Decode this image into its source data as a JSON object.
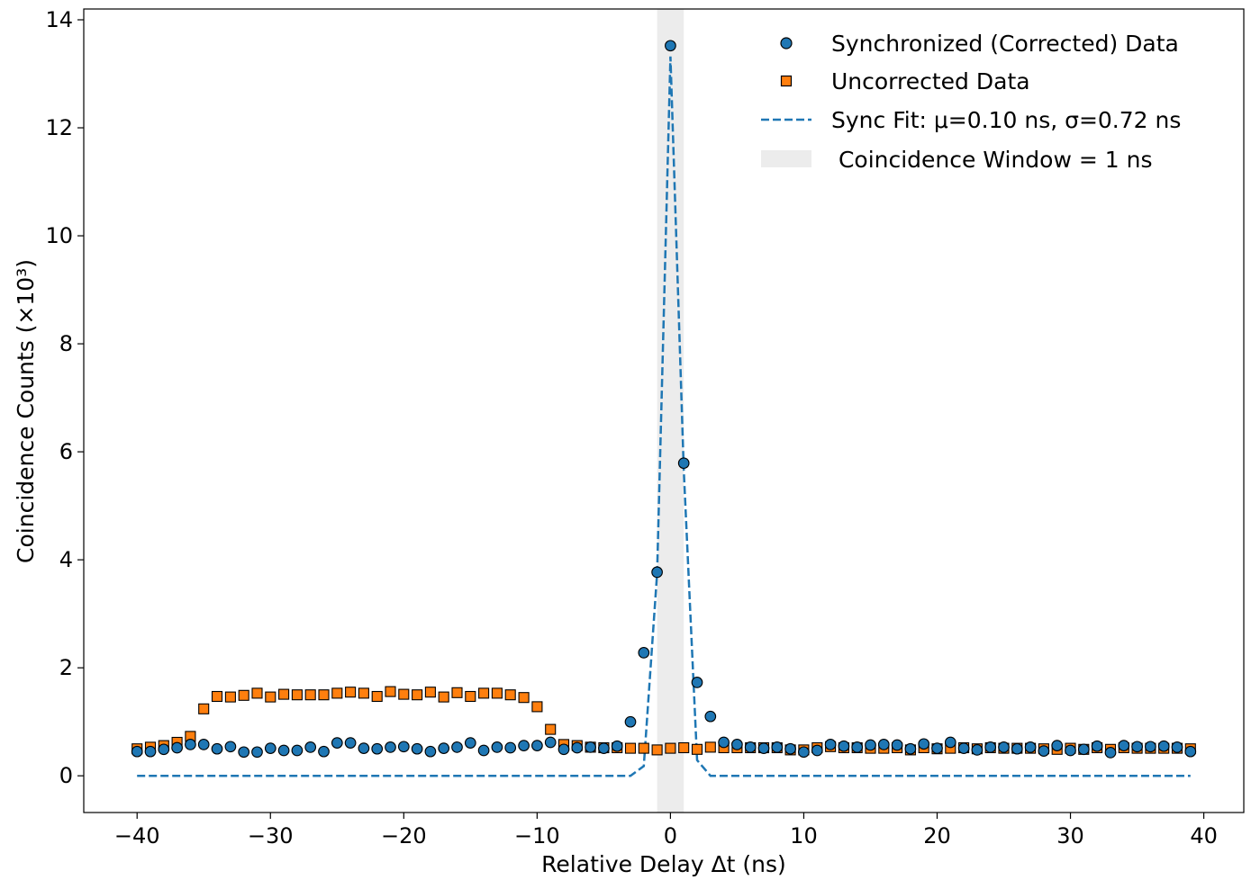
{
  "chart_data": {
    "type": "scatter",
    "xlabel": "Relative Delay  Δt (ns)",
    "ylabel": "Coincidence Counts (×10³)",
    "xlim": [
      -44,
      43
    ],
    "ylim": [
      -0.68,
      14.2
    ],
    "xticks": [
      -40,
      -30,
      -20,
      -10,
      0,
      10,
      20,
      30,
      40
    ],
    "yticks": [
      0,
      2,
      4,
      6,
      8,
      10,
      12,
      14
    ],
    "grid": false,
    "legend_position": "top-right",
    "shaded_region": {
      "name": " Coincidence Window = 1 ns",
      "x": [
        -1,
        1
      ],
      "color": "#d9d9d9"
    },
    "x": [
      -40,
      -39,
      -38,
      -37,
      -36,
      -35,
      -34,
      -33,
      -32,
      -31,
      -30,
      -29,
      -28,
      -27,
      -26,
      -25,
      -24,
      -23,
      -22,
      -21,
      -20,
      -19,
      -18,
      -17,
      -16,
      -15,
      -14,
      -13,
      -12,
      -11,
      -10,
      -9,
      -8,
      -7,
      -6,
      -5,
      -4,
      -3,
      -2,
      -1,
      0,
      1,
      2,
      3,
      4,
      5,
      6,
      7,
      8,
      9,
      10,
      11,
      12,
      13,
      14,
      15,
      16,
      17,
      18,
      19,
      20,
      21,
      22,
      23,
      24,
      25,
      26,
      27,
      28,
      29,
      30,
      31,
      32,
      33,
      34,
      35,
      36,
      37,
      38,
      39
    ],
    "series": [
      {
        "name": "Synchronized (Corrected) Data",
        "marker": "circle",
        "color": "#1f77b4",
        "values": [
          0.45,
          0.45,
          0.49,
          0.52,
          0.58,
          0.58,
          0.5,
          0.54,
          0.44,
          0.44,
          0.51,
          0.47,
          0.47,
          0.53,
          0.45,
          0.61,
          0.61,
          0.51,
          0.5,
          0.53,
          0.54,
          0.5,
          0.45,
          0.51,
          0.53,
          0.61,
          0.47,
          0.53,
          0.52,
          0.56,
          0.56,
          0.62,
          0.49,
          0.52,
          0.53,
          0.51,
          0.55,
          1.0,
          2.28,
          3.77,
          13.52,
          5.79,
          1.73,
          1.1,
          0.62,
          0.58,
          0.53,
          0.51,
          0.53,
          0.5,
          0.44,
          0.47,
          0.58,
          0.55,
          0.53,
          0.57,
          0.58,
          0.57,
          0.5,
          0.59,
          0.51,
          0.62,
          0.51,
          0.48,
          0.53,
          0.53,
          0.5,
          0.53,
          0.46,
          0.56,
          0.47,
          0.49,
          0.55,
          0.43,
          0.56,
          0.54,
          0.54,
          0.55,
          0.53,
          0.45
        ]
      },
      {
        "name": "Uncorrected Data",
        "marker": "square",
        "color": "#ff7f0e",
        "values": [
          0.5,
          0.53,
          0.56,
          0.62,
          0.73,
          1.24,
          1.47,
          1.46,
          1.49,
          1.53,
          1.46,
          1.51,
          1.5,
          1.5,
          1.5,
          1.53,
          1.55,
          1.53,
          1.47,
          1.56,
          1.51,
          1.5,
          1.55,
          1.46,
          1.54,
          1.47,
          1.53,
          1.53,
          1.5,
          1.45,
          1.28,
          0.86,
          0.58,
          0.56,
          0.53,
          0.52,
          0.52,
          0.51,
          0.51,
          0.48,
          0.51,
          0.52,
          0.49,
          0.53,
          0.52,
          0.52,
          0.52,
          0.52,
          0.52,
          0.48,
          0.48,
          0.52,
          0.54,
          0.52,
          0.52,
          0.51,
          0.51,
          0.52,
          0.48,
          0.52,
          0.5,
          0.51,
          0.52,
          0.5,
          0.52,
          0.51,
          0.51,
          0.51,
          0.5,
          0.49,
          0.51,
          0.49,
          0.52,
          0.49,
          0.52,
          0.51,
          0.51,
          0.51,
          0.51,
          0.5
        ]
      },
      {
        "name": "Sync Fit: μ=0.10 ns, σ=0.72 ns",
        "marker": "dashed-line",
        "color": "#1f77b4",
        "values": [
          0,
          0,
          0,
          0,
          0,
          0,
          0,
          0,
          0,
          0,
          0,
          0,
          0,
          0,
          0,
          0,
          0,
          0,
          0,
          0,
          0,
          0,
          0,
          0,
          0,
          0,
          0,
          0,
          0,
          0,
          0,
          0,
          0,
          0,
          0,
          0,
          0,
          0,
          0.18,
          3.75,
          13.32,
          5.66,
          0.29,
          0,
          0,
          0,
          0,
          0,
          0,
          0,
          0,
          0,
          0,
          0,
          0,
          0,
          0,
          0,
          0,
          0,
          0,
          0,
          0,
          0,
          0,
          0,
          0,
          0,
          0,
          0,
          0,
          0,
          0,
          0,
          0,
          0,
          0,
          0,
          0,
          0
        ]
      }
    ]
  }
}
